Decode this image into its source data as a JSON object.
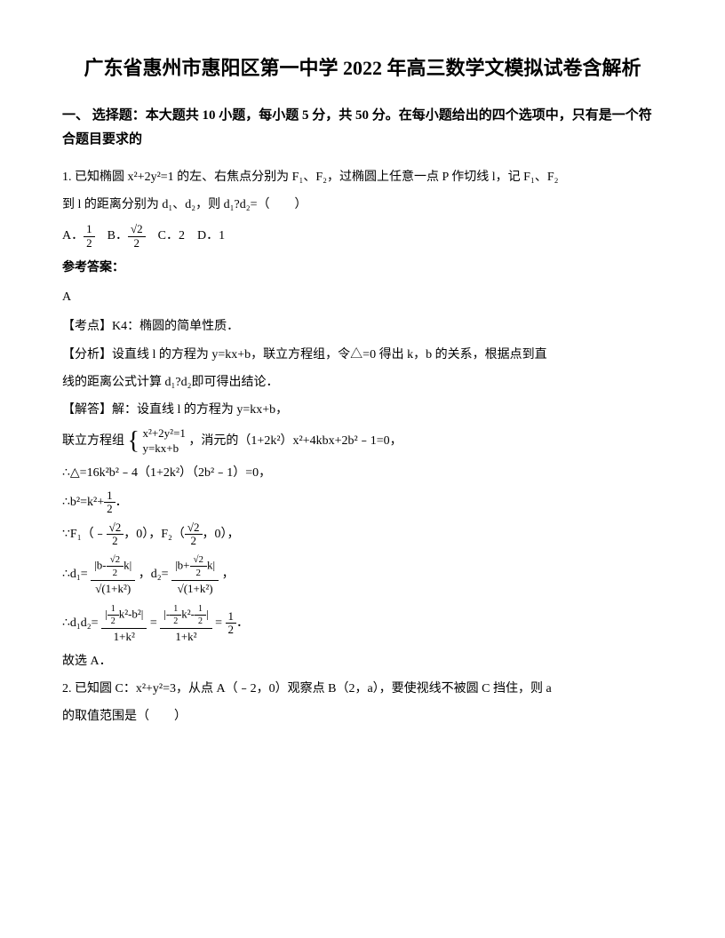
{
  "title": "广东省惠州市惠阳区第一中学 2022 年高三数学文模拟试卷含解析",
  "section_header": "一、 选择题：本大题共 10 小题，每小题 5 分，共 50 分。在每小题给出的四个选项中，只有是一个符合题目要求的",
  "q1": {
    "text_line1": "1. 已知椭圆 x²+2y²=1 的左、右焦点分别为 F₁、F₂，过椭圆上任意一点 P 作切线 l，记 F₁、F₂",
    "text_line2": "到 l 的距离分别为 d₁、d₂，则 d₁?d₂=（　　）",
    "opt_a_prefix": "A．",
    "opt_b_prefix": "B．",
    "opt_c": "C．2",
    "opt_d": "D．1",
    "answer_label": "参考答案：",
    "answer": "A",
    "point": "【考点】K4：椭圆的简单性质．",
    "analysis1": "【分析】设直线 l 的方程为 y=kx+b，联立方程组，令△=0 得出 k，b 的关系，根据点到直",
    "analysis2": "线的距离公式计算 d₁?d₂即可得出结论．",
    "solve1": "【解答】解：设直线 l 的方程为 y=kx+b，",
    "solve2_prefix": "联立方程组",
    "solve2_eq1": "x²+2y²=1",
    "solve2_eq2": "y=kx+b",
    "solve2_suffix": "，消元的（1+2k²）x²+4kbx+2b²﹣1=0，",
    "solve3": "∴△=16k²b²﹣4（1+2k²）（2b²﹣1）=0，",
    "solve4_prefix": "∴b²=k²+",
    "solve4_suffix": "．",
    "solve5_prefix": "∵F₁（﹣",
    "solve5_mid": "，0），F₂（",
    "solve5_suffix": "，0），",
    "solve6_prefix": "∴d₁=",
    "solve6_mid": "，d₂=",
    "solve6_suffix": "，",
    "solve7_prefix": "∴d₁d₂=",
    "solve7_eq": "=",
    "solve7_suffix": "．",
    "conclusion": "故选 A．"
  },
  "q2": {
    "line1": "2. 已知圆 C：x²+y²=3，从点 A（﹣2，0）观察点 B（2，a），要使视线不被圆 C 挡住，则 a",
    "line2": "的取值范围是（　　）"
  },
  "fractions": {
    "half_num": "1",
    "half_den": "2",
    "sqrt2_num": "√2",
    "sqrt2_den": "2"
  }
}
